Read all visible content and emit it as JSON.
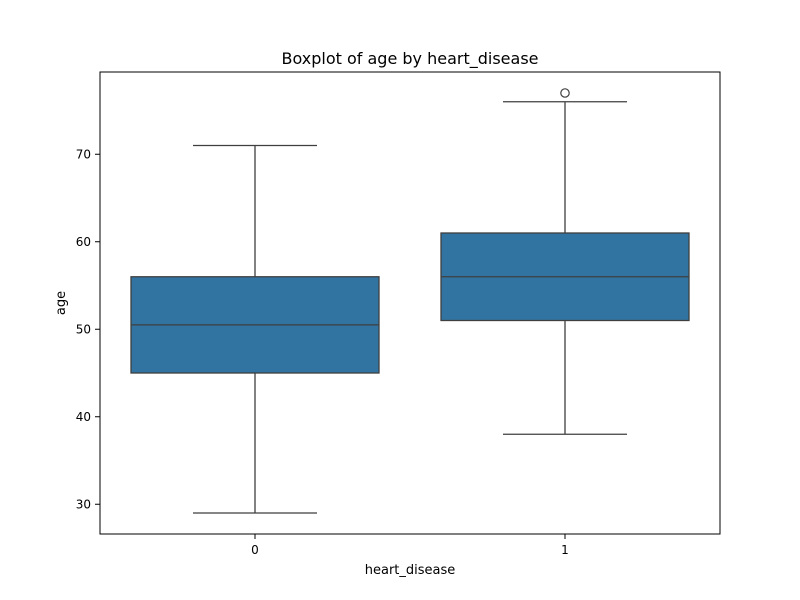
{
  "chart_data": {
    "type": "box",
    "title": "Boxplot of age by heart_disease",
    "xlabel": "heart_disease",
    "ylabel": "age",
    "categories": [
      "0",
      "1"
    ],
    "yticks": [
      30,
      40,
      50,
      60,
      70
    ],
    "ylim": [
      26.6,
      79.4
    ],
    "grid": false,
    "box_color": "#3274a1",
    "line_color": "#3f3f3f",
    "boxes": [
      {
        "category": "0",
        "whisker_low": 29,
        "q1": 45,
        "median": 50.5,
        "q3": 56,
        "whisker_high": 71,
        "outliers": []
      },
      {
        "category": "1",
        "whisker_low": 38,
        "q1": 51,
        "median": 56,
        "q3": 61,
        "whisker_high": 76,
        "outliers": [
          77
        ]
      }
    ]
  }
}
